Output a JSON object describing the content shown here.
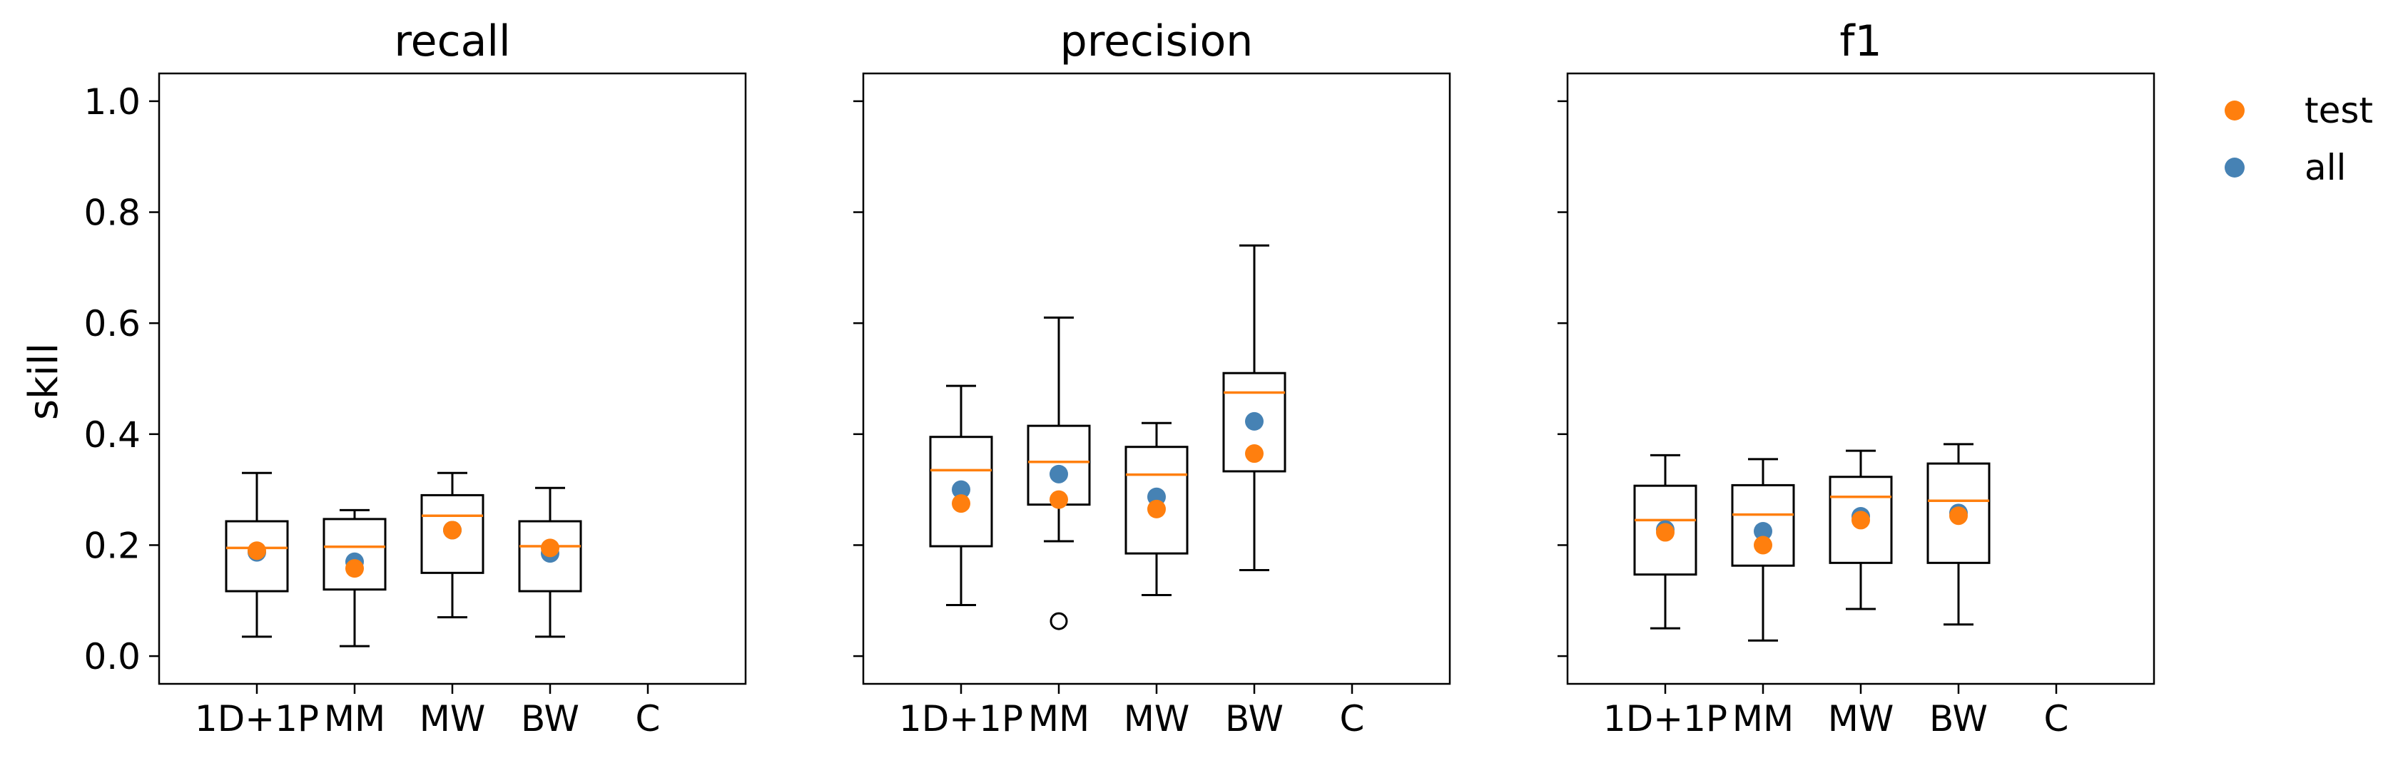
{
  "chart_data": {
    "type": "box",
    "categories": [
      "1D+1P",
      "MM",
      "MW",
      "BW",
      "C"
    ],
    "ylabel": "skill",
    "ylim": [
      -0.05,
      1.05
    ],
    "yticks": [
      "0.0",
      "0.2",
      "0.4",
      "0.6",
      "0.8",
      "1.0"
    ],
    "ytick_values": [
      0.0,
      0.2,
      0.4,
      0.6,
      0.8,
      1.0
    ],
    "grid": false,
    "legend": {
      "placement": "right",
      "entries": [
        "test",
        "all"
      ]
    },
    "colors": {
      "test": "#ff7f0e",
      "all": "#4682b4",
      "median": "#ff7f0e",
      "box": "#000000"
    },
    "panels": [
      {
        "title": "recall",
        "boxes": [
          {
            "category": "1D+1P",
            "whislo": 0.035,
            "q1": 0.117,
            "median": 0.195,
            "q3": 0.243,
            "whishi": 0.33,
            "fliers": [],
            "test": 0.19,
            "all": 0.187
          },
          {
            "category": "MM",
            "whislo": 0.018,
            "q1": 0.12,
            "median": 0.197,
            "q3": 0.247,
            "whishi": 0.263,
            "fliers": [],
            "test": 0.158,
            "all": 0.17
          },
          {
            "category": "MW",
            "whislo": 0.07,
            "q1": 0.15,
            "median": 0.253,
            "q3": 0.29,
            "whishi": 0.33,
            "fliers": [],
            "test": 0.227,
            "all": 0.227
          },
          {
            "category": "BW",
            "whislo": 0.035,
            "q1": 0.117,
            "median": 0.198,
            "q3": 0.243,
            "whishi": 0.303,
            "fliers": [],
            "test": 0.195,
            "all": 0.185
          },
          {
            "category": "C",
            "whislo": null,
            "q1": null,
            "median": null,
            "q3": null,
            "whishi": null,
            "fliers": [],
            "test": null,
            "all": null
          }
        ]
      },
      {
        "title": "precision",
        "boxes": [
          {
            "category": "1D+1P",
            "whislo": 0.092,
            "q1": 0.198,
            "median": 0.335,
            "q3": 0.395,
            "whishi": 0.487,
            "fliers": [],
            "test": 0.275,
            "all": 0.3
          },
          {
            "category": "MM",
            "whislo": 0.207,
            "q1": 0.273,
            "median": 0.35,
            "q3": 0.415,
            "whishi": 0.61,
            "fliers": [
              0.063
            ],
            "test": 0.282,
            "all": 0.328
          },
          {
            "category": "MW",
            "whislo": 0.11,
            "q1": 0.185,
            "median": 0.327,
            "q3": 0.377,
            "whishi": 0.42,
            "fliers": [],
            "test": 0.265,
            "all": 0.287
          },
          {
            "category": "BW",
            "whislo": 0.155,
            "q1": 0.333,
            "median": 0.475,
            "q3": 0.51,
            "whishi": 0.74,
            "fliers": [],
            "test": 0.365,
            "all": 0.423
          },
          {
            "category": "C",
            "whislo": null,
            "q1": null,
            "median": null,
            "q3": null,
            "whishi": null,
            "fliers": [],
            "test": null,
            "all": null
          }
        ]
      },
      {
        "title": "f1",
        "boxes": [
          {
            "category": "1D+1P",
            "whislo": 0.05,
            "q1": 0.147,
            "median": 0.245,
            "q3": 0.307,
            "whishi": 0.362,
            "fliers": [],
            "test": 0.223,
            "all": 0.228
          },
          {
            "category": "MM",
            "whislo": 0.028,
            "q1": 0.163,
            "median": 0.255,
            "q3": 0.308,
            "whishi": 0.355,
            "fliers": [],
            "test": 0.2,
            "all": 0.225
          },
          {
            "category": "MW",
            "whislo": 0.085,
            "q1": 0.168,
            "median": 0.287,
            "q3": 0.323,
            "whishi": 0.37,
            "fliers": [],
            "test": 0.245,
            "all": 0.252
          },
          {
            "category": "BW",
            "whislo": 0.057,
            "q1": 0.168,
            "median": 0.28,
            "q3": 0.347,
            "whishi": 0.382,
            "fliers": [],
            "test": 0.253,
            "all": 0.258
          },
          {
            "category": "C",
            "whislo": null,
            "q1": null,
            "median": null,
            "q3": null,
            "whishi": null,
            "fliers": [],
            "test": null,
            "all": null
          }
        ]
      }
    ]
  }
}
